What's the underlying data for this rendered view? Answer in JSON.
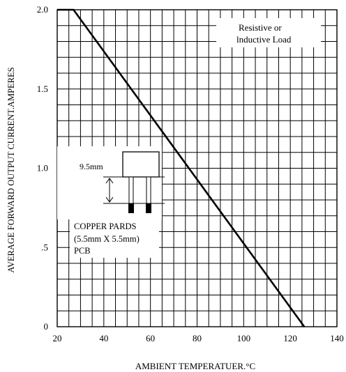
{
  "chart_data": {
    "type": "line",
    "title": "",
    "xlabel": "AMBIENT TEMPERATUER.°C",
    "ylabel": "AVERAGE FORWARD OUTPUT CURRENT.AMPERES",
    "xlim": [
      20,
      140
    ],
    "ylim": [
      0,
      2.0
    ],
    "x_ticks": [
      20,
      40,
      60,
      80,
      100,
      120,
      140
    ],
    "x_tick_labels": [
      "20",
      "40",
      "60",
      "80",
      "100",
      "120",
      "140"
    ],
    "y_ticks": [
      0,
      0.5,
      1.0,
      1.5,
      2.0
    ],
    "y_tick_labels": [
      "0",
      ".5",
      "1.0",
      "1.5",
      "2.0"
    ],
    "x_minor_step": 5,
    "y_minor_step": 0.1,
    "grid": true,
    "series": [
      {
        "name": "",
        "color": "#000000",
        "x": [
          20,
          27,
          126
        ],
        "y": [
          2.0,
          2.0,
          0
        ]
      }
    ],
    "annotations": {
      "load_note": [
        "Resistive or",
        "lnductive Load"
      ],
      "dimension_label": "9.5mm",
      "pcb_note": [
        "COPPER PARDS",
        "(5.5mm X 5.5mm)",
        "PCB"
      ]
    }
  }
}
